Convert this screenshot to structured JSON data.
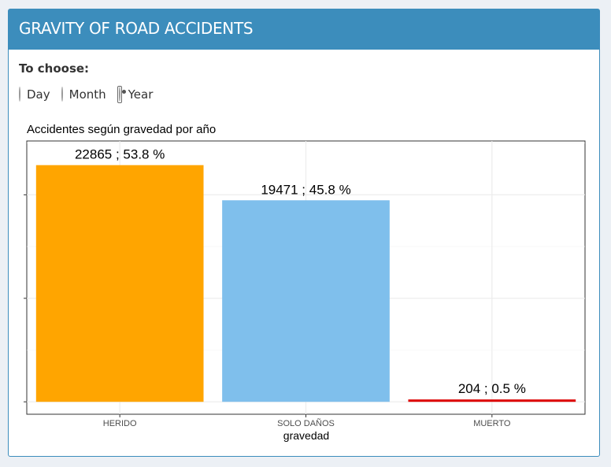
{
  "header": {
    "title": "GRAVITY OF ROAD ACCIDENTS"
  },
  "controls": {
    "label": "To choose:",
    "options": [
      {
        "label": "Day",
        "checked": false
      },
      {
        "label": "Month",
        "checked": false
      },
      {
        "label": "Year",
        "checked": true
      }
    ]
  },
  "chart_data": {
    "type": "bar",
    "title": "Accidentes según gravedad por año",
    "xlabel": "gravedad",
    "ylabel": "",
    "categories": [
      "HERIDO",
      "SOLO DAÑOS",
      "MUERTO"
    ],
    "values": [
      22865,
      19471,
      204
    ],
    "data_labels": [
      "22865 ; 53.8 %",
      "19471 ; 45.8 %",
      "204 ; 0.5 %"
    ],
    "colors": [
      "#FFA500",
      "#7FBFEC",
      "#DD0000"
    ],
    "ylim": [
      -1200,
      25200
    ],
    "grid": true,
    "legend": "none"
  }
}
